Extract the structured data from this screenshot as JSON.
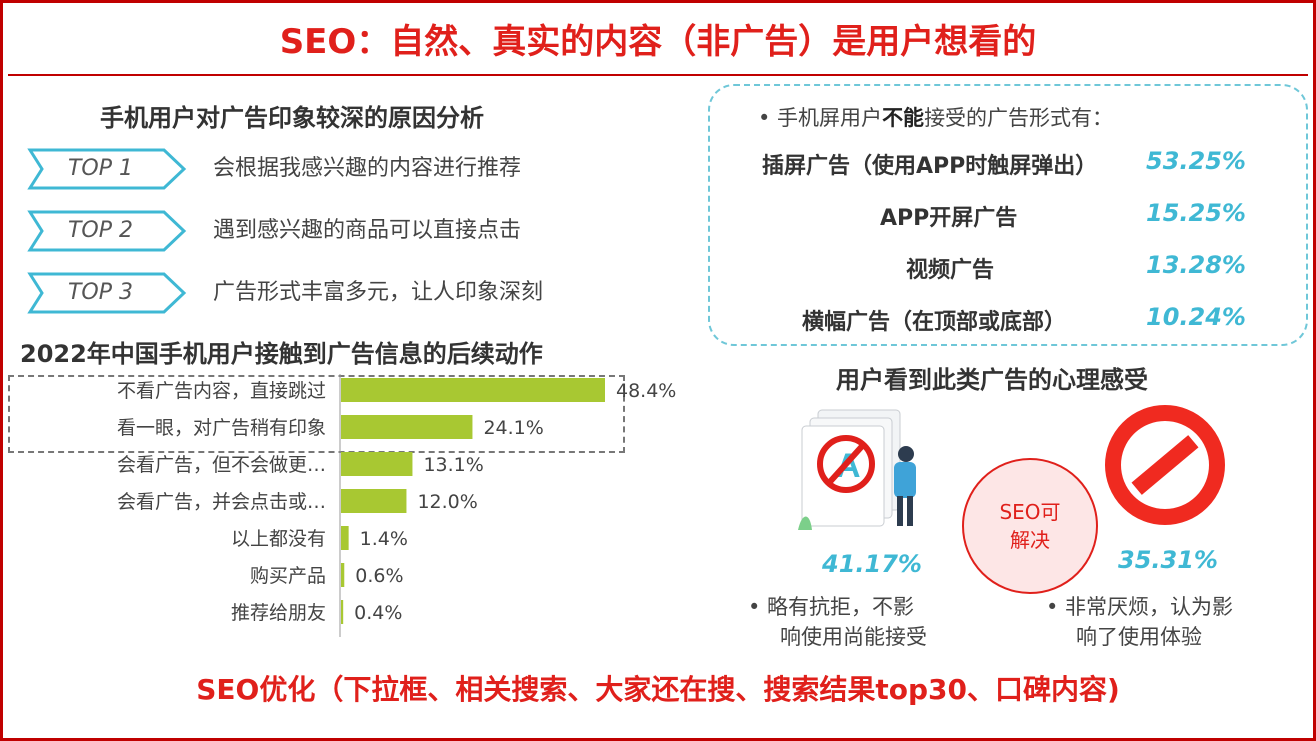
{
  "title": "SEO：自然、真实的内容（非广告）是用户想看的",
  "footer": "SEO优化（下拉框、相关搜索、大家还在搜、搜索结果top30、口碑内容)",
  "impression": {
    "heading": "手机用户对广告印象较深的原因分析",
    "items": [
      {
        "tag": "TOP 1",
        "text": "会根据我感兴趣的内容进行推荐"
      },
      {
        "tag": "TOP 2",
        "text": "遇到感兴趣的商品可以直接点击"
      },
      {
        "tag": "TOP 3",
        "text": "广告形式丰富多元，让人印象深刻"
      }
    ]
  },
  "chart_data": {
    "type": "bar",
    "title": "2022年中国手机用户接触到广告信息的后续动作",
    "categories": [
      "不看广告内容，直接跳过",
      "看一眼，对广告稍有印象",
      "会看广告，但不会做更…",
      "会看广告，并会点击或…",
      "以上都没有",
      "购买产品",
      "推荐给朋友"
    ],
    "values": [
      48.4,
      24.1,
      13.1,
      12.0,
      1.4,
      0.6,
      0.4
    ],
    "labels": [
      "48.4%",
      "24.1%",
      "13.1%",
      "12.0%",
      "1.4%",
      "0.6%",
      "0.4%"
    ],
    "bar_color": "#a8c832",
    "xlim": [
      0,
      55
    ]
  },
  "ads": {
    "intro_prefix": "•  手机屏用户",
    "intro_bold": "不能",
    "intro_suffix": "接受的广告形式有：",
    "rows": [
      {
        "name": "插屏广告（使用APP时触屏弹出）",
        "pct": "53.25%"
      },
      {
        "name": "APP开屏广告",
        "pct": "15.25%"
      },
      {
        "name": "视频广告",
        "pct": "13.28%"
      },
      {
        "name": "横幅广告（在顶部或底部）",
        "pct": "10.24%"
      }
    ]
  },
  "feeling": {
    "heading": "用户看到此类广告的心理感受",
    "left": {
      "pct": "41.17%",
      "line1": "•  略有抗拒，不影",
      "line2": "响使用尚能接受"
    },
    "right": {
      "pct": "35.31%",
      "line1": "•  非常厌烦，认为影",
      "line2": "响了使用体验"
    },
    "seo_line1": "SEO可",
    "seo_line2": "解决"
  },
  "colors": {
    "red": "#e0201b",
    "cyan": "#3fb8d4",
    "green": "#a8c832"
  }
}
